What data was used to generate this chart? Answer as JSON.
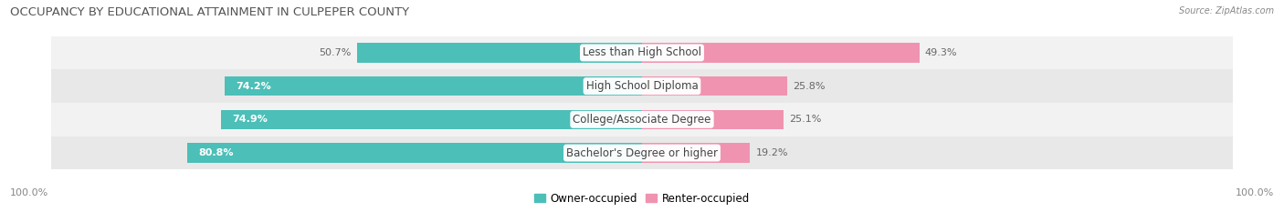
{
  "title": "OCCUPANCY BY EDUCATIONAL ATTAINMENT IN CULPEPER COUNTY",
  "source": "Source: ZipAtlas.com",
  "categories": [
    "Less than High School",
    "High School Diploma",
    "College/Associate Degree",
    "Bachelor's Degree or higher"
  ],
  "owner_values": [
    50.7,
    74.2,
    74.9,
    80.8
  ],
  "renter_values": [
    49.3,
    25.8,
    25.1,
    19.2
  ],
  "owner_color": "#4BBFB8",
  "renter_color": "#F093B0",
  "row_bg_color_light": "#F2F2F2",
  "row_bg_color_dark": "#E8E8E8",
  "title_fontsize": 9.5,
  "label_fontsize": 8.5,
  "value_fontsize": 8,
  "tick_fontsize": 8,
  "left_label": "100.0%",
  "right_label": "100.0%"
}
